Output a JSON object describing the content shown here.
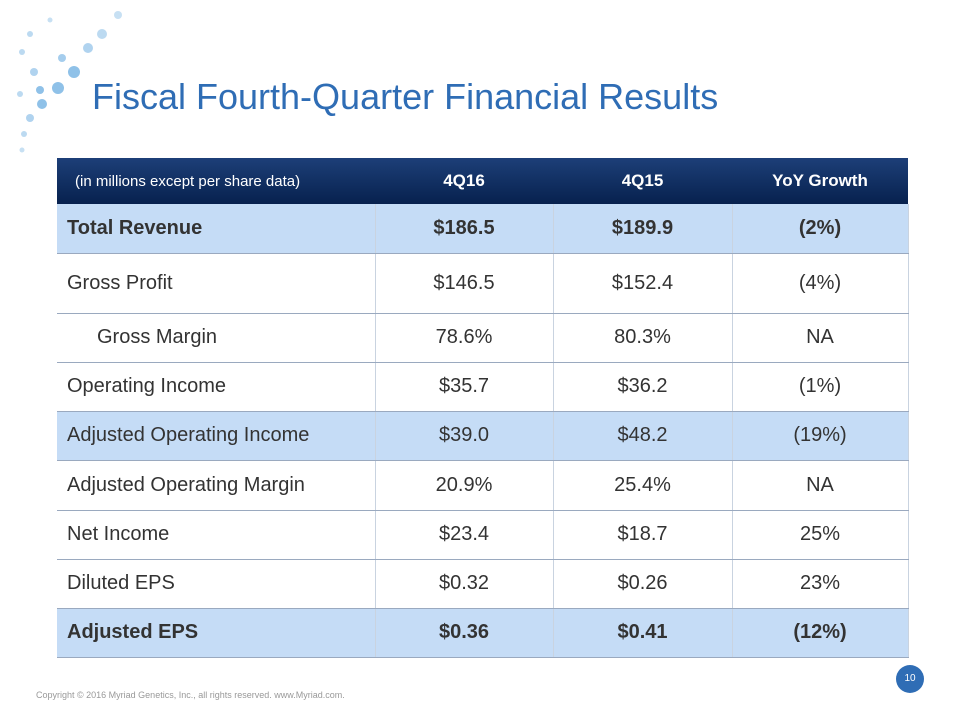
{
  "header": {
    "title": "Fiscal Fourth-Quarter Financial Results"
  },
  "table": {
    "columns": [
      "(in millions except per share data)",
      "4Q16",
      "4Q15",
      "YoY Growth"
    ],
    "rows": [
      [
        "Total Revenue",
        "$186.5",
        "$189.9",
        "(2%)"
      ],
      [
        "Gross Profit",
        "$146.5",
        "$152.4",
        "(4%)"
      ],
      [
        "Gross Margin",
        "78.6%",
        "80.3%",
        "NA"
      ],
      [
        "Operating Income",
        "$35.7",
        "$36.2",
        "(1%)"
      ],
      [
        "Adjusted Operating Income",
        "$39.0",
        "$48.2",
        "(19%)"
      ],
      [
        "Adjusted Operating Margin",
        "20.9%",
        "25.4%",
        "NA"
      ],
      [
        "Net Income",
        "$23.4",
        "$18.7",
        "25%"
      ],
      [
        "Diluted EPS",
        "$0.32",
        "$0.26",
        "23%"
      ],
      [
        "Adjusted EPS",
        "$0.36",
        "$0.41",
        "(12%)"
      ]
    ]
  },
  "footer": {
    "copyright": "Copyright © 2016 Myriad Genetics, Inc., all rights reserved.  www.Myriad.com.",
    "page_number": "10"
  }
}
